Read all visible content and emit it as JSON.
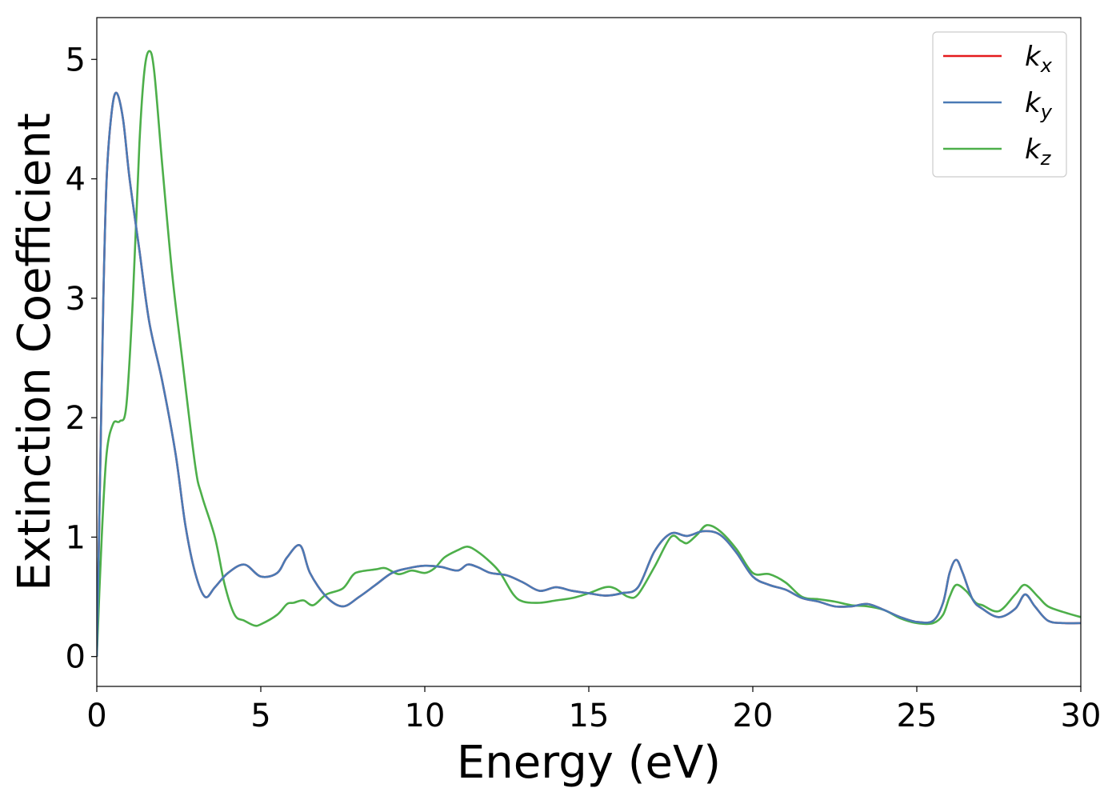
{
  "chart_data": {
    "type": "line",
    "xlabel": "Energy (eV)",
    "ylabel": "Extinction Coefficient",
    "xlim": [
      0,
      30
    ],
    "ylim": [
      -0.25,
      5.35
    ],
    "xticks": [
      0,
      5,
      10,
      15,
      20,
      25,
      30
    ],
    "yticks": [
      0,
      1,
      2,
      3,
      4,
      5
    ],
    "grid": false,
    "legend": "top-right",
    "series": [
      {
        "name": "k_x",
        "label_base": "k",
        "label_sub": "x",
        "color": "#e41a1c",
        "x": [
          0,
          0.1,
          0.2,
          0.3,
          0.45,
          0.6,
          0.8,
          1.0,
          1.3,
          1.6,
          2.0,
          2.4,
          2.7,
          3.0,
          3.3,
          3.6,
          4.0,
          4.5,
          5.0,
          5.5,
          5.8,
          6.2,
          6.5,
          7.0,
          7.5,
          8.0,
          8.5,
          9.0,
          9.5,
          10.0,
          10.5,
          11.0,
          11.3,
          11.6,
          12.0,
          12.5,
          13.0,
          13.5,
          14.0,
          14.5,
          15.0,
          15.5,
          16.0,
          16.5,
          17.0,
          17.5,
          18.0,
          18.5,
          19.0,
          19.5,
          20.0,
          20.5,
          21.0,
          21.5,
          22.0,
          22.5,
          23.0,
          23.5,
          24.0,
          24.5,
          25.0,
          25.5,
          25.8,
          26.0,
          26.2,
          26.4,
          26.7,
          27.0,
          27.5,
          28.0,
          28.3,
          28.6,
          29.0,
          29.5,
          30.0
        ],
        "y": [
          0,
          1.5,
          3.0,
          4.0,
          4.55,
          4.72,
          4.5,
          4.0,
          3.4,
          2.8,
          2.3,
          1.7,
          1.1,
          0.7,
          0.5,
          0.58,
          0.7,
          0.77,
          0.67,
          0.7,
          0.83,
          0.93,
          0.7,
          0.5,
          0.42,
          0.5,
          0.6,
          0.7,
          0.74,
          0.76,
          0.75,
          0.72,
          0.77,
          0.75,
          0.7,
          0.68,
          0.62,
          0.55,
          0.58,
          0.55,
          0.53,
          0.51,
          0.53,
          0.58,
          0.88,
          1.03,
          1.01,
          1.05,
          1.02,
          0.87,
          0.67,
          0.6,
          0.56,
          0.49,
          0.46,
          0.42,
          0.42,
          0.44,
          0.39,
          0.33,
          0.29,
          0.3,
          0.45,
          0.7,
          0.81,
          0.7,
          0.48,
          0.4,
          0.33,
          0.4,
          0.52,
          0.42,
          0.3,
          0.28,
          0.28
        ]
      },
      {
        "name": "k_y",
        "label_base": "k",
        "label_sub": "y",
        "color": "#4a7ab5",
        "x": [
          0,
          0.1,
          0.2,
          0.3,
          0.45,
          0.6,
          0.8,
          1.0,
          1.3,
          1.6,
          2.0,
          2.4,
          2.7,
          3.0,
          3.3,
          3.6,
          4.0,
          4.5,
          5.0,
          5.5,
          5.8,
          6.2,
          6.5,
          7.0,
          7.5,
          8.0,
          8.5,
          9.0,
          9.5,
          10.0,
          10.5,
          11.0,
          11.3,
          11.6,
          12.0,
          12.5,
          13.0,
          13.5,
          14.0,
          14.5,
          15.0,
          15.5,
          16.0,
          16.5,
          17.0,
          17.5,
          18.0,
          18.5,
          19.0,
          19.5,
          20.0,
          20.5,
          21.0,
          21.5,
          22.0,
          22.5,
          23.0,
          23.5,
          24.0,
          24.5,
          25.0,
          25.5,
          25.8,
          26.0,
          26.2,
          26.4,
          26.7,
          27.0,
          27.5,
          28.0,
          28.3,
          28.6,
          29.0,
          29.5,
          30.0
        ],
        "y": [
          0,
          1.5,
          3.0,
          4.0,
          4.55,
          4.72,
          4.5,
          4.0,
          3.4,
          2.8,
          2.3,
          1.7,
          1.1,
          0.7,
          0.5,
          0.58,
          0.7,
          0.77,
          0.67,
          0.7,
          0.83,
          0.93,
          0.7,
          0.5,
          0.42,
          0.5,
          0.6,
          0.7,
          0.74,
          0.76,
          0.75,
          0.72,
          0.77,
          0.75,
          0.7,
          0.68,
          0.62,
          0.55,
          0.58,
          0.55,
          0.53,
          0.51,
          0.53,
          0.58,
          0.88,
          1.03,
          1.01,
          1.05,
          1.02,
          0.87,
          0.67,
          0.6,
          0.56,
          0.49,
          0.46,
          0.42,
          0.42,
          0.44,
          0.39,
          0.33,
          0.29,
          0.3,
          0.45,
          0.7,
          0.81,
          0.7,
          0.48,
          0.4,
          0.33,
          0.4,
          0.52,
          0.42,
          0.3,
          0.28,
          0.28
        ]
      },
      {
        "name": "k_z",
        "label_base": "k",
        "label_sub": "z",
        "color": "#4daf4a",
        "x": [
          0,
          0.15,
          0.3,
          0.5,
          0.7,
          0.9,
          1.1,
          1.3,
          1.45,
          1.6,
          1.75,
          2.0,
          2.3,
          2.6,
          3.0,
          3.2,
          3.6,
          3.9,
          4.2,
          4.5,
          4.8,
          5.0,
          5.5,
          5.8,
          6.0,
          6.3,
          6.6,
          7.0,
          7.5,
          7.8,
          8.0,
          8.5,
          8.8,
          9.2,
          9.6,
          10.0,
          10.3,
          10.6,
          11.0,
          11.3,
          11.6,
          12.0,
          12.3,
          12.7,
          13.0,
          13.5,
          14.0,
          14.5,
          15.0,
          15.5,
          15.8,
          16.2,
          16.5,
          17.0,
          17.5,
          17.8,
          18.0,
          18.3,
          18.6,
          19.0,
          19.5,
          20.0,
          20.5,
          21.0,
          21.5,
          22.0,
          22.5,
          23.0,
          23.5,
          24.0,
          24.5,
          25.0,
          25.5,
          25.8,
          26.0,
          26.2,
          26.5,
          26.8,
          27.0,
          27.5,
          28.0,
          28.3,
          28.7,
          29.0,
          29.5,
          30.0
        ],
        "y": [
          0,
          1.0,
          1.7,
          1.95,
          1.97,
          2.1,
          3.0,
          4.3,
          4.9,
          5.07,
          4.9,
          4.1,
          3.2,
          2.5,
          1.6,
          1.35,
          1.0,
          0.6,
          0.35,
          0.3,
          0.26,
          0.27,
          0.35,
          0.44,
          0.45,
          0.47,
          0.43,
          0.52,
          0.57,
          0.68,
          0.71,
          0.73,
          0.74,
          0.69,
          0.72,
          0.7,
          0.74,
          0.83,
          0.89,
          0.92,
          0.88,
          0.79,
          0.7,
          0.52,
          0.46,
          0.45,
          0.47,
          0.49,
          0.53,
          0.58,
          0.57,
          0.5,
          0.52,
          0.75,
          1.0,
          0.97,
          0.95,
          1.02,
          1.1,
          1.05,
          0.9,
          0.7,
          0.69,
          0.62,
          0.5,
          0.48,
          0.46,
          0.43,
          0.42,
          0.39,
          0.32,
          0.28,
          0.28,
          0.35,
          0.5,
          0.6,
          0.55,
          0.45,
          0.43,
          0.38,
          0.52,
          0.6,
          0.5,
          0.42,
          0.37,
          0.33
        ]
      }
    ]
  }
}
